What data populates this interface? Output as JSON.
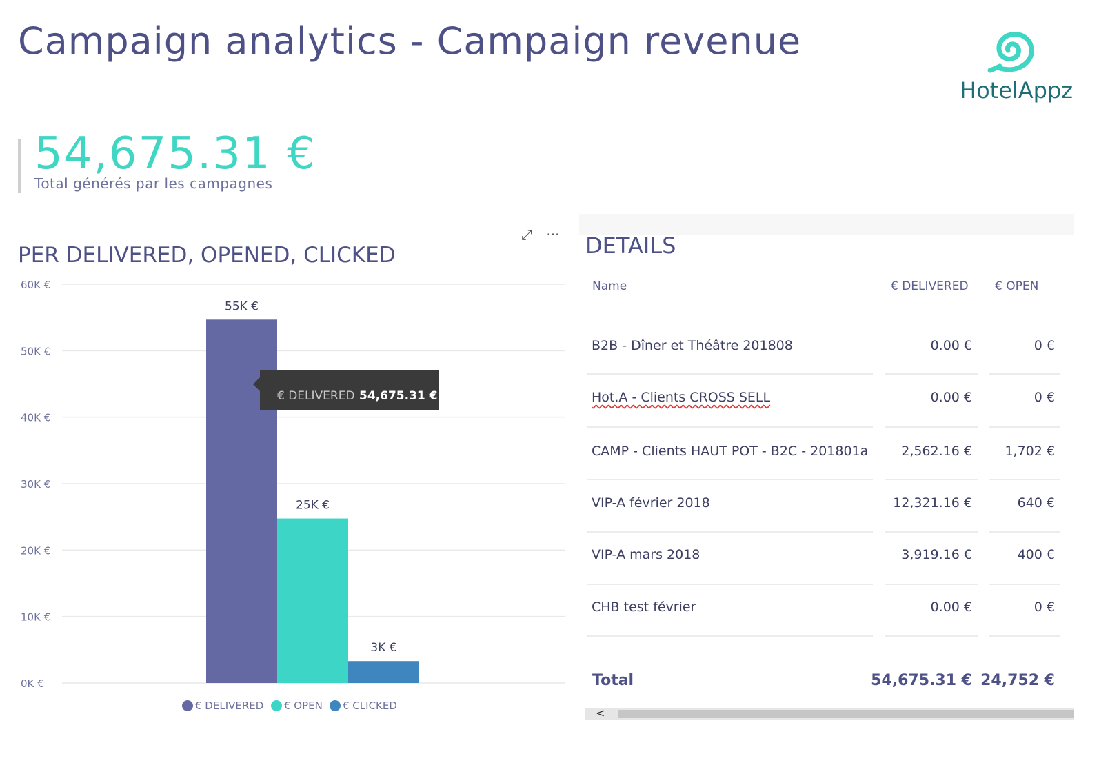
{
  "title": "Campaign analytics - Campaign revenue",
  "logo": {
    "text": "HotelAppz",
    "color": "#1f6e76",
    "accent": "#3fd6c4"
  },
  "kpi": {
    "value": "54,675.31 €",
    "label": "Total générés par les campagnes"
  },
  "chart_toolbar": {
    "focus_icon": "focus-mode-icon",
    "more_icon": "more-options-icon",
    "focus_glyph": "⤢",
    "more_glyph": "···"
  },
  "chart_data": {
    "type": "bar",
    "title": "PER DELIVERED, OPENED, CLICKED",
    "series": [
      {
        "name": "€ DELIVERED",
        "value": 54675.31,
        "label": "55K €",
        "color": "#6469a3"
      },
      {
        "name": "€ OPEN",
        "value": 24752,
        "label": "25K €",
        "color": "#3dd6c6"
      },
      {
        "name": "€ CLICKED",
        "value": 3300,
        "label": "3K €",
        "color": "#3f86bf"
      }
    ],
    "yticks": [
      "0K €",
      "10K €",
      "20K €",
      "30K €",
      "40K €",
      "50K €",
      "60K €"
    ],
    "ylim": [
      0,
      60000
    ],
    "grid": true,
    "legend": "bottom",
    "tooltip": {
      "label": "€ DELIVERED",
      "value": "54,675.31 €"
    }
  },
  "details": {
    "title": "DETAILS",
    "columns": [
      "Name",
      "€ DELIVERED",
      "€ OPEN"
    ],
    "rows": [
      {
        "name": "B2B - Dîner et Théâtre 201808",
        "delivered": "0.00 €",
        "open": "0 €"
      },
      {
        "name": "Hot.A - Clients CROSS SELL",
        "delivered": "0.00 €",
        "open": "0 €"
      },
      {
        "name": "CAMP - Clients HAUT POT - B2C - 201801a",
        "delivered": "2,562.16 €",
        "open": "1,702 €"
      },
      {
        "name": "VIP-A février 2018",
        "delivered": "12,321.16 €",
        "open": "640 €"
      },
      {
        "name": "VIP-A mars 2018",
        "delivered": "3,919.16 €",
        "open": "400 €"
      },
      {
        "name": "CHB test février",
        "delivered": "0.00 €",
        "open": "0 €"
      }
    ],
    "total": {
      "label": "Total",
      "delivered": "54,675.31 €",
      "open": "24,752 €"
    },
    "scroll_left": "<"
  }
}
